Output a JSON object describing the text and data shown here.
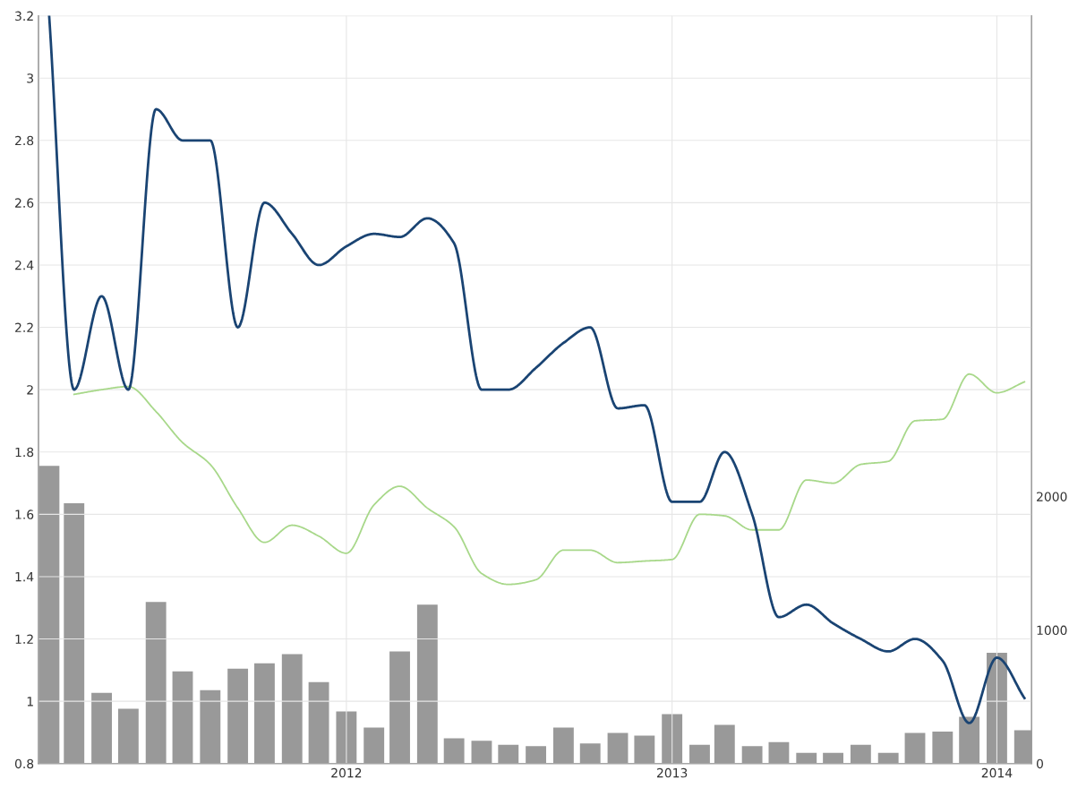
{
  "chart_data": {
    "type": "line",
    "x": [
      "2011-02",
      "2011-03",
      "2011-04",
      "2011-05",
      "2011-06",
      "2011-07",
      "2011-08",
      "2011-09",
      "2011-10",
      "2011-11",
      "2011-12",
      "2012-01",
      "2012-02",
      "2012-03",
      "2012-04",
      "2012-05",
      "2012-06",
      "2012-07",
      "2012-08",
      "2012-09",
      "2012-10",
      "2012-11",
      "2012-12",
      "2013-01",
      "2013-02",
      "2013-03",
      "2013-04",
      "2013-05",
      "2013-06",
      "2013-07",
      "2013-08",
      "2013-09",
      "2013-10",
      "2013-11",
      "2013-12",
      "2014-01",
      "2014-02"
    ],
    "series": [
      {
        "type": "bar",
        "axis": "y2",
        "color": "#999999",
        "values": [
          2230,
          1950,
          530,
          410,
          1210,
          690,
          550,
          710,
          750,
          820,
          610,
          390,
          270,
          840,
          1190,
          190,
          170,
          140,
          130,
          270,
          150,
          230,
          210,
          370,
          140,
          290,
          130,
          160,
          80,
          80,
          140,
          80,
          230,
          240,
          350,
          830,
          250
        ]
      },
      {
        "color": "#a8d88a",
        "values": [
          null,
          1.985,
          2.0,
          2.01,
          1.93,
          1.83,
          1.76,
          1.62,
          1.51,
          1.565,
          1.53,
          1.475,
          1.63,
          1.69,
          1.62,
          1.56,
          1.41,
          1.375,
          1.39,
          1.485,
          1.485,
          1.445,
          1.45,
          1.455,
          1.6,
          1.595,
          1.55,
          1.55,
          1.71,
          1.7,
          1.76,
          1.77,
          1.9,
          1.905,
          2.05,
          1.99,
          2.025
        ]
      },
      {
        "color": "#1a4473",
        "values": [
          3.2,
          2.0,
          2.3,
          2.0,
          2.9,
          2.8,
          2.8,
          2.2,
          2.6,
          2.5,
          2.4,
          2.46,
          2.5,
          2.49,
          2.55,
          2.47,
          2.0,
          2.0,
          2.07,
          2.15,
          2.2,
          1.94,
          1.95,
          1.64,
          1.64,
          1.8,
          1.6,
          1.27,
          1.31,
          1.25,
          1.2,
          1.16,
          1.2,
          1.13,
          0.93,
          1.14,
          1.01
        ]
      }
    ],
    "xlim": [
      "2011-01-20",
      "2014-02-09"
    ],
    "xticks": [
      {
        "value": "2012-01-01",
        "label": "2012"
      },
      {
        "value": "2013-01-01",
        "label": "2013"
      },
      {
        "value": "2014-01-01",
        "label": "2014"
      }
    ],
    "ylim": [
      0.8,
      3.2
    ],
    "yticks": [
      0.8,
      1,
      1.2,
      1.4,
      1.6,
      1.8,
      2,
      2.2,
      2.4,
      2.6,
      2.8,
      3,
      3.2
    ],
    "y2lim": [
      0,
      5600
    ],
    "y2ticks": [
      0,
      1000,
      2000
    ],
    "grid": true,
    "legend": false,
    "marker": "none",
    "line_style": "solid"
  }
}
